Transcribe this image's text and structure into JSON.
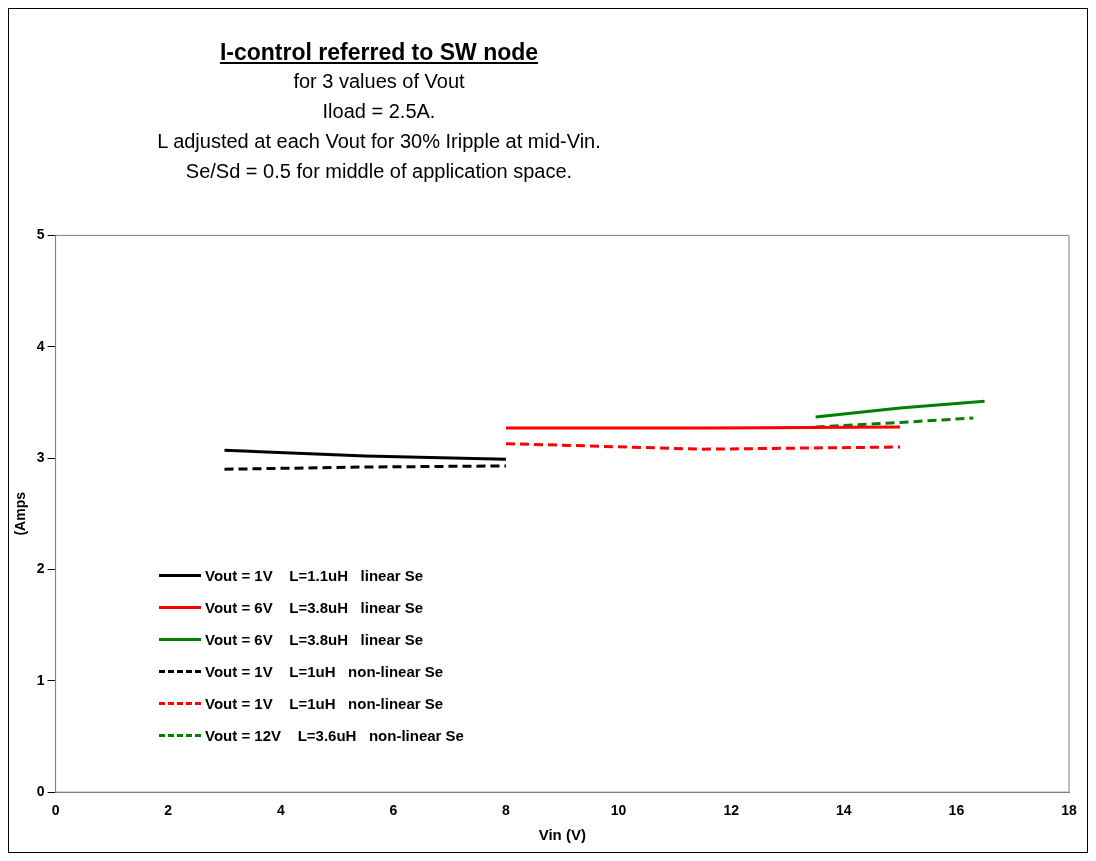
{
  "chart_data": {
    "type": "line",
    "title": "I-control referred to SW node",
    "subtitle": "for 3 values of Vout\nIload = 2.5A.\nL adjusted at each Vout for 30% Iripple at mid-Vin.\nSe/Sd = 0.5 for middle of application space.",
    "xlabel": "Vin (V)",
    "ylabel": "(Amps",
    "xlim": [
      0,
      18
    ],
    "xticks": [
      0,
      2,
      4,
      6,
      8,
      10,
      12,
      14,
      16,
      18
    ],
    "ylim": [
      0,
      5
    ],
    "yticks": [
      0,
      1,
      2,
      3,
      4,
      5
    ],
    "grid": false,
    "legend": "left",
    "marker": "none",
    "series": [
      {
        "name": "Vout = 1V    L=1.1uH   linear Se",
        "color": "#000000",
        "line_style": "solid",
        "x": [
          3,
          5.5,
          8
        ],
        "values": [
          3.07,
          3.02,
          2.99
        ]
      },
      {
        "name": "Vout = 6V    L=3.8uH   linear Se",
        "color": "#ff0000",
        "line_style": "solid",
        "x": [
          8,
          11.5,
          15
        ],
        "values": [
          3.27,
          3.27,
          3.28
        ]
      },
      {
        "name": "Vout = 6V    L=3.8uH   linear Se",
        "color": "#008000",
        "line_style": "solid",
        "x": [
          13.5,
          15,
          16.5
        ],
        "values": [
          3.37,
          3.45,
          3.51
        ]
      },
      {
        "name": "Vout = 1V    L=1uH   non-linear Se",
        "color": "#000000",
        "line_style": "dashed",
        "x": [
          3,
          5.5,
          8
        ],
        "values": [
          2.9,
          2.92,
          2.93
        ]
      },
      {
        "name": "Vout = 1V    L=1uH   non-linear Se",
        "color": "#ff0000",
        "line_style": "dashed",
        "x": [
          8,
          11.5,
          15
        ],
        "values": [
          3.13,
          3.08,
          3.1
        ]
      },
      {
        "name": "Vout = 12V    L=3.6uH   non-linear Se",
        "color": "#008000",
        "line_style": "dashed",
        "x": [
          13.5,
          15,
          16.3
        ],
        "values": [
          3.28,
          3.32,
          3.36
        ]
      }
    ]
  }
}
